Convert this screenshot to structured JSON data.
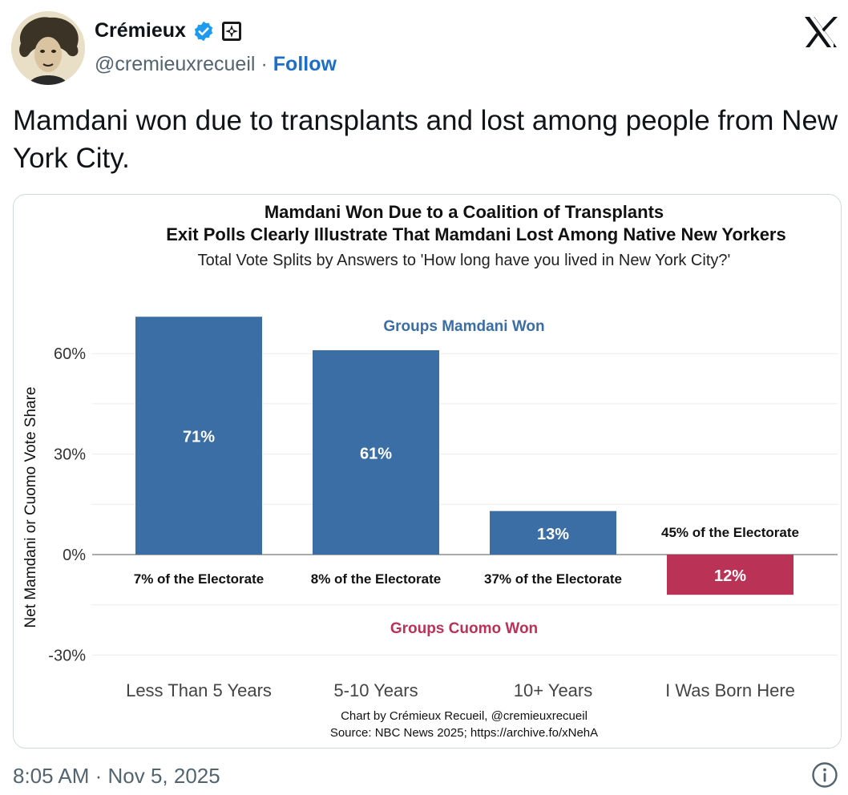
{
  "author": {
    "name": "Crémieux",
    "handle": "@cremieuxrecueil",
    "separator": "·",
    "follow_label": "Follow"
  },
  "icons": {
    "verified": "verified-badge-icon",
    "affiliation": "affiliation-badge-icon",
    "brand": "x-logo-icon",
    "info": "info-icon"
  },
  "colors": {
    "mamdani": "#3a6ea5",
    "cuomo": "#bb3257",
    "follow": "#1d6ec9",
    "verified": "#1d9bf0"
  },
  "tweet": {
    "text": "Mamdani won due to transplants and lost among people from New York City.",
    "timestamp": "8:05 AM · Nov 5, 2025"
  },
  "chart_data": {
    "type": "bar",
    "title": "Mamdani Won Due to a Coalition of Transplants",
    "subtitle": "Exit Polls Clearly Illustrate That Mamdani Lost Among Native New Yorkers",
    "subtitle2": "Total Vote Splits by Answers to 'How long have you lived in New York City?'",
    "ylabel": "Net Mamdani or Cuomo Vote Share",
    "xlabel": "",
    "ylim": [
      -30,
      70
    ],
    "yticks": [
      {
        "v": 60,
        "label": "60%"
      },
      {
        "v": 30,
        "label": "30%"
      },
      {
        "v": 0,
        "label": "0%"
      },
      {
        "v": -30,
        "label": "-30%"
      }
    ],
    "grid": true,
    "categories": [
      "Less Than 5 Years",
      "5-10 Years",
      "10+ Years",
      "I Was Born Here"
    ],
    "values": [
      71,
      61,
      13,
      -12
    ],
    "value_labels": [
      "71%",
      "61%",
      "13%",
      "12%"
    ],
    "electorate_labels": [
      "7% of the Electorate",
      "8% of the Electorate",
      "37% of the Electorate",
      "45% of the Electorate"
    ],
    "annotations": {
      "top": "Groups Mamdani Won",
      "bottom": "Groups Cuomo Won"
    },
    "caption": "Chart by Crémieux Recueil, @cremieuxrecueil",
    "source": "Source: NBC News 2025; https://archive.fo/xNehA"
  }
}
